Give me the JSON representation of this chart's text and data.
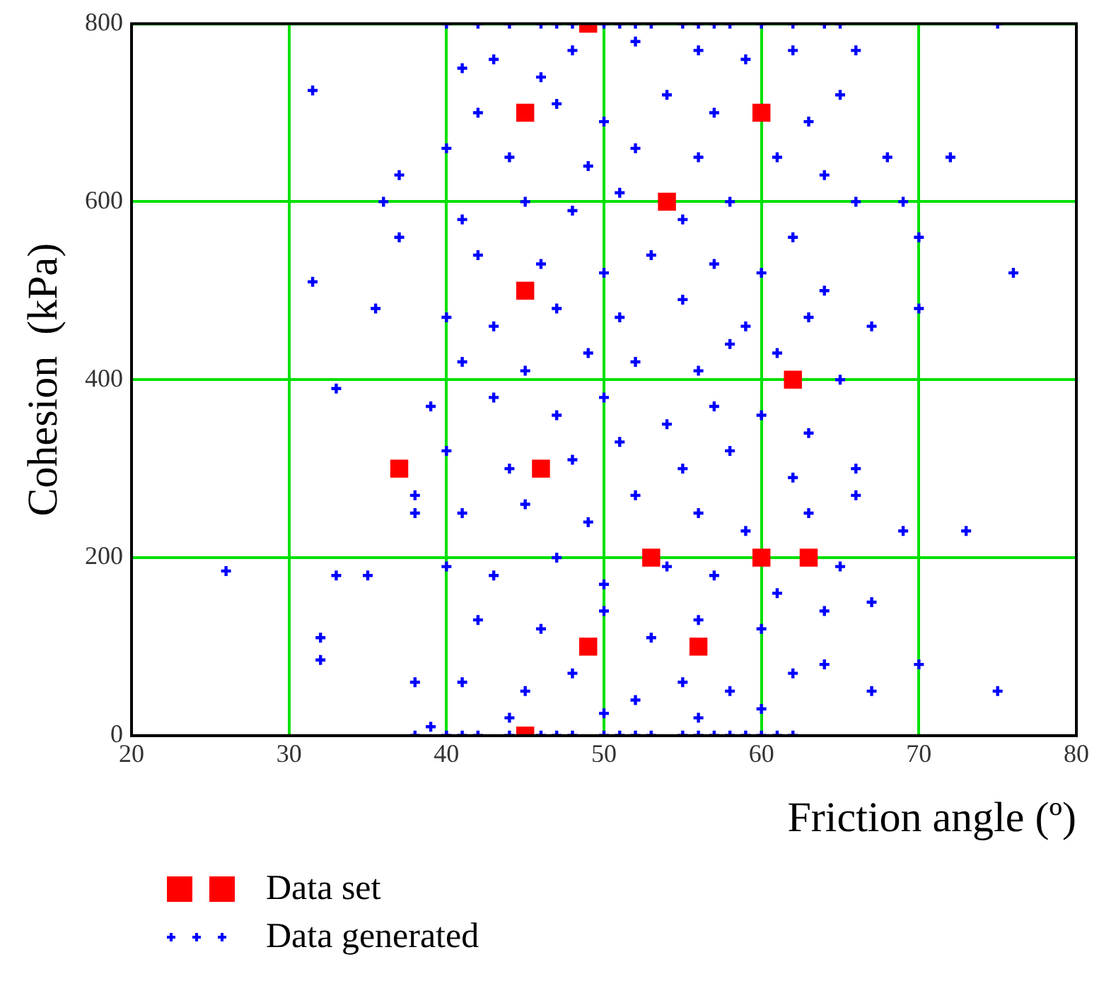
{
  "chart_data": {
    "type": "scatter",
    "xlabel": "Friction angle (º)",
    "ylabel": "Cohesion  (kPa)",
    "xlim": [
      20,
      80
    ],
    "xticks": [
      20,
      30,
      40,
      50,
      60,
      70,
      80
    ],
    "ylim": [
      0,
      800
    ],
    "yticks": [
      0,
      200,
      400,
      600,
      800
    ],
    "grid": true,
    "legend": "bottom",
    "series": [
      {
        "name": "Data set",
        "color": "#ff0000",
        "marker": "square",
        "x": [
          49,
          45,
          60,
          54,
          45,
          62,
          37,
          46,
          53,
          60,
          63,
          49,
          56,
          45
        ],
        "values": [
          800,
          700,
          700,
          600,
          500,
          400,
          300,
          300,
          200,
          200,
          200,
          100,
          100,
          0
        ]
      },
      {
        "name": "Data generated",
        "color": "#0000ff",
        "marker": "cross",
        "x": [
          26,
          31.5,
          31.5,
          32,
          32,
          33,
          33,
          35,
          35.5,
          36,
          37,
          38,
          38,
          38,
          39,
          75,
          75,
          76,
          73,
          72,
          70,
          70,
          70,
          69,
          66,
          66,
          69,
          68,
          66,
          65,
          64,
          67,
          67,
          40,
          42,
          44,
          46,
          47,
          48,
          50,
          51,
          52,
          53,
          55,
          56,
          57,
          58,
          60,
          62,
          64,
          38,
          40,
          41,
          42,
          44,
          46,
          47,
          48,
          50,
          51,
          52,
          53,
          55,
          56,
          57,
          58,
          59,
          60,
          61,
          62,
          41,
          43,
          46,
          48,
          52,
          56,
          59,
          62,
          42,
          47,
          50,
          54,
          57,
          63,
          65,
          40,
          44,
          49,
          52,
          56,
          61,
          64,
          37,
          41,
          45,
          48,
          51,
          55,
          58,
          62,
          66,
          42,
          46,
          50,
          53,
          57,
          60,
          64,
          40,
          43,
          47,
          51,
          55,
          59,
          63,
          67,
          41,
          45,
          49,
          52,
          56,
          58,
          61,
          65,
          39,
          43,
          47,
          50,
          54,
          57,
          60,
          63,
          40,
          44,
          48,
          51,
          55,
          58,
          62,
          41,
          45,
          49,
          52,
          56,
          59,
          63,
          40,
          43,
          47,
          50,
          54,
          57,
          61,
          65,
          42,
          46,
          50,
          53,
          56,
          60,
          64,
          41,
          45,
          48,
          52,
          55,
          58,
          62,
          44,
          50,
          56,
          60
        ],
        "values": [
          185,
          725,
          510,
          110,
          85,
          390,
          180,
          180,
          480,
          600,
          630,
          270,
          250,
          60,
          10,
          50,
          800,
          520,
          230,
          650,
          560,
          480,
          80,
          230,
          270,
          300,
          600,
          650,
          770,
          800,
          80,
          150,
          50,
          800,
          800,
          800,
          800,
          800,
          800,
          800,
          800,
          800,
          800,
          800,
          800,
          800,
          800,
          800,
          800,
          800,
          0,
          0,
          0,
          0,
          0,
          0,
          0,
          0,
          0,
          0,
          0,
          0,
          0,
          0,
          0,
          0,
          0,
          0,
          0,
          0,
          750,
          760,
          740,
          770,
          780,
          770,
          760,
          770,
          700,
          710,
          690,
          720,
          700,
          690,
          720,
          660,
          650,
          640,
          660,
          650,
          650,
          630,
          560,
          580,
          600,
          590,
          610,
          580,
          600,
          560,
          600,
          540,
          530,
          520,
          540,
          530,
          520,
          500,
          470,
          460,
          480,
          470,
          490,
          460,
          470,
          460,
          420,
          410,
          430,
          420,
          410,
          440,
          430,
          400,
          370,
          380,
          360,
          380,
          350,
          370,
          360,
          340,
          320,
          300,
          310,
          330,
          300,
          320,
          290,
          250,
          260,
          240,
          270,
          250,
          230,
          250,
          190,
          180,
          200,
          170,
          190,
          180,
          160,
          190,
          130,
          120,
          140,
          110,
          130,
          120,
          140,
          60,
          50,
          70,
          40,
          60,
          50,
          70,
          20,
          25,
          20,
          30
        ]
      }
    ]
  }
}
